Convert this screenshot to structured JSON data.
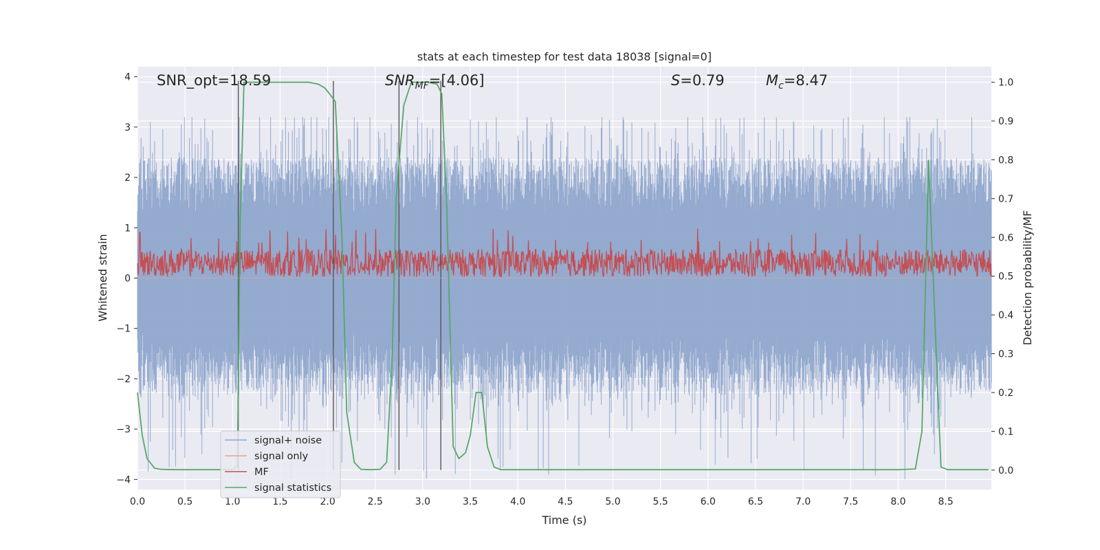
{
  "chart_data": {
    "type": "line",
    "title": "stats at each timestep for test data 18038 [signal=0]",
    "xlabel": "Time (s)",
    "ylabel_left": "Whitened strain",
    "ylabel_right": "Detection probability/MF",
    "xlim": [
      0.0,
      8.98
    ],
    "ylim_left": [
      -4.2,
      4.2
    ],
    "ylim_right": [
      -0.05,
      1.04
    ],
    "x_ticks": [
      "0.0",
      "0.5",
      "1.0",
      "1.5",
      "2.0",
      "2.5",
      "3.0",
      "3.5",
      "4.0",
      "4.5",
      "5.0",
      "5.5",
      "6.0",
      "6.5",
      "7.0",
      "7.5",
      "8.0",
      "8.5"
    ],
    "y_ticks_left": [
      "−4",
      "−3",
      "−2",
      "−1",
      "0",
      "1",
      "2",
      "3",
      "4"
    ],
    "y_ticks_right": [
      "0.0",
      "0.1",
      "0.2",
      "0.3",
      "0.4",
      "0.5",
      "0.6",
      "0.7",
      "0.8",
      "0.9",
      "1.0"
    ],
    "grid": true,
    "legend_placement": "lower-left",
    "annotations": {
      "snr_opt": "SNR_opt=18.59",
      "snr_mf_label": "SNR",
      "snr_mf_sub": "MF",
      "snr_mf_value": "=[4.06]",
      "s_label": "S",
      "s_value": "=0.79",
      "mc_label": "M",
      "mc_sub": "c",
      "mc_value": "=8.47"
    },
    "vertical_lines_x": [
      1.06,
      2.06,
      2.75,
      3.19
    ],
    "series": [
      {
        "name": "signal+ noise",
        "color": "#8fa6cc",
        "axis": "left",
        "kind": "noise_band",
        "approx_range": [
          -2.4,
          2.4
        ],
        "peak_range": [
          -4.0,
          3.2
        ]
      },
      {
        "name": "signal only",
        "color": "#e8a58f",
        "axis": "left",
        "kind": "flat",
        "values": [
          0.0
        ]
      },
      {
        "name": "MF",
        "color": "#c44e52",
        "axis": "left",
        "kind": "noise_band",
        "approx_range": [
          0.05,
          0.6
        ],
        "peak_range": [
          0.0,
          1.0
        ]
      },
      {
        "name": "signal statistics",
        "color": "#55a868",
        "axis": "right",
        "x": [
          0.0,
          0.05,
          0.1,
          0.18,
          0.25,
          0.4,
          0.6,
          0.8,
          1.0,
          1.05,
          1.08,
          1.12,
          1.2,
          1.4,
          1.6,
          1.8,
          1.9,
          1.97,
          2.02,
          2.08,
          2.15,
          2.2,
          2.28,
          2.35,
          2.45,
          2.55,
          2.62,
          2.68,
          2.72,
          2.8,
          2.88,
          2.95,
          3.05,
          3.15,
          3.2,
          3.25,
          3.32,
          3.38,
          3.45,
          3.5,
          3.56,
          3.62,
          3.68,
          3.75,
          3.82,
          4.0,
          5.0,
          6.0,
          7.0,
          8.0,
          8.18,
          8.25,
          8.32,
          8.4,
          8.45,
          8.52,
          8.6,
          8.95
        ],
        "values": [
          0.2,
          0.09,
          0.03,
          0.005,
          0.002,
          0.001,
          0.001,
          0.001,
          0.001,
          0.01,
          0.65,
          1.0,
          1.0,
          1.0,
          1.0,
          1.0,
          0.995,
          0.985,
          0.97,
          0.95,
          0.6,
          0.15,
          0.02,
          0.002,
          0.001,
          0.002,
          0.02,
          0.3,
          0.7,
          0.94,
          1.0,
          1.0,
          1.0,
          0.995,
          0.97,
          0.7,
          0.06,
          0.03,
          0.045,
          0.09,
          0.2,
          0.2,
          0.06,
          0.008,
          0.001,
          0.001,
          0.001,
          0.001,
          0.001,
          0.001,
          0.003,
          0.1,
          0.8,
          0.3,
          0.008,
          0.001,
          0.001,
          0.001
        ]
      }
    ]
  },
  "colors": {
    "plot_background": "#eaeaf2",
    "grid": "#ffffff",
    "vertical_line": "#555555"
  }
}
